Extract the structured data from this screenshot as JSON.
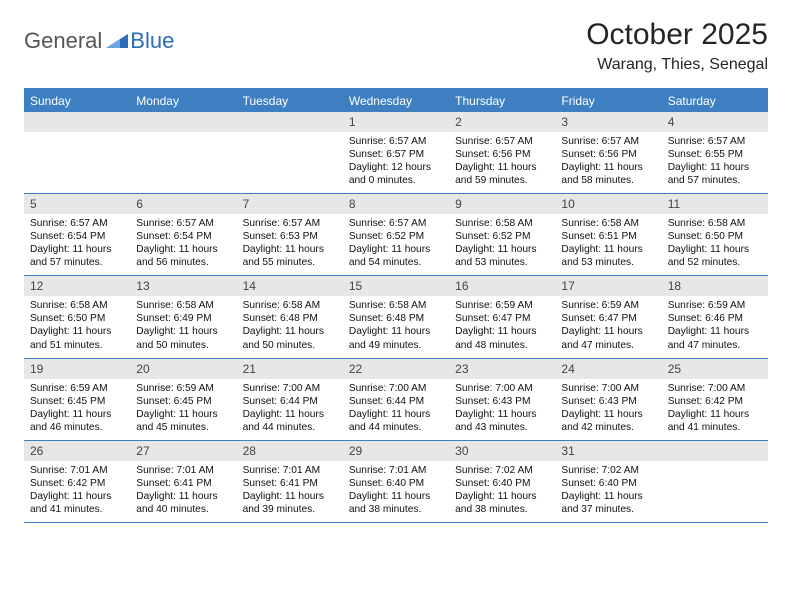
{
  "logo": {
    "general": "General",
    "blue": "Blue"
  },
  "month_title": "October 2025",
  "location": "Warang, Thies, Senegal",
  "day_headers": [
    "Sunday",
    "Monday",
    "Tuesday",
    "Wednesday",
    "Thursday",
    "Friday",
    "Saturday"
  ],
  "colors": {
    "brand_blue": "#3e7fc1",
    "daynum_bg": "#e7e7e7",
    "text": "#1a1a1a",
    "logo_gray": "#555555"
  },
  "weeks": [
    [
      {
        "n": "",
        "empty": true
      },
      {
        "n": "",
        "empty": true
      },
      {
        "n": "",
        "empty": true
      },
      {
        "n": "1",
        "sr": "6:57 AM",
        "ss": "6:57 PM",
        "dl": "12 hours and 0 minutes."
      },
      {
        "n": "2",
        "sr": "6:57 AM",
        "ss": "6:56 PM",
        "dl": "11 hours and 59 minutes."
      },
      {
        "n": "3",
        "sr": "6:57 AM",
        "ss": "6:56 PM",
        "dl": "11 hours and 58 minutes."
      },
      {
        "n": "4",
        "sr": "6:57 AM",
        "ss": "6:55 PM",
        "dl": "11 hours and 57 minutes."
      }
    ],
    [
      {
        "n": "5",
        "sr": "6:57 AM",
        "ss": "6:54 PM",
        "dl": "11 hours and 57 minutes."
      },
      {
        "n": "6",
        "sr": "6:57 AM",
        "ss": "6:54 PM",
        "dl": "11 hours and 56 minutes."
      },
      {
        "n": "7",
        "sr": "6:57 AM",
        "ss": "6:53 PM",
        "dl": "11 hours and 55 minutes."
      },
      {
        "n": "8",
        "sr": "6:57 AM",
        "ss": "6:52 PM",
        "dl": "11 hours and 54 minutes."
      },
      {
        "n": "9",
        "sr": "6:58 AM",
        "ss": "6:52 PM",
        "dl": "11 hours and 53 minutes."
      },
      {
        "n": "10",
        "sr": "6:58 AM",
        "ss": "6:51 PM",
        "dl": "11 hours and 53 minutes."
      },
      {
        "n": "11",
        "sr": "6:58 AM",
        "ss": "6:50 PM",
        "dl": "11 hours and 52 minutes."
      }
    ],
    [
      {
        "n": "12",
        "sr": "6:58 AM",
        "ss": "6:50 PM",
        "dl": "11 hours and 51 minutes."
      },
      {
        "n": "13",
        "sr": "6:58 AM",
        "ss": "6:49 PM",
        "dl": "11 hours and 50 minutes."
      },
      {
        "n": "14",
        "sr": "6:58 AM",
        "ss": "6:48 PM",
        "dl": "11 hours and 50 minutes."
      },
      {
        "n": "15",
        "sr": "6:58 AM",
        "ss": "6:48 PM",
        "dl": "11 hours and 49 minutes."
      },
      {
        "n": "16",
        "sr": "6:59 AM",
        "ss": "6:47 PM",
        "dl": "11 hours and 48 minutes."
      },
      {
        "n": "17",
        "sr": "6:59 AM",
        "ss": "6:47 PM",
        "dl": "11 hours and 47 minutes."
      },
      {
        "n": "18",
        "sr": "6:59 AM",
        "ss": "6:46 PM",
        "dl": "11 hours and 47 minutes."
      }
    ],
    [
      {
        "n": "19",
        "sr": "6:59 AM",
        "ss": "6:45 PM",
        "dl": "11 hours and 46 minutes."
      },
      {
        "n": "20",
        "sr": "6:59 AM",
        "ss": "6:45 PM",
        "dl": "11 hours and 45 minutes."
      },
      {
        "n": "21",
        "sr": "7:00 AM",
        "ss": "6:44 PM",
        "dl": "11 hours and 44 minutes."
      },
      {
        "n": "22",
        "sr": "7:00 AM",
        "ss": "6:44 PM",
        "dl": "11 hours and 44 minutes."
      },
      {
        "n": "23",
        "sr": "7:00 AM",
        "ss": "6:43 PM",
        "dl": "11 hours and 43 minutes."
      },
      {
        "n": "24",
        "sr": "7:00 AM",
        "ss": "6:43 PM",
        "dl": "11 hours and 42 minutes."
      },
      {
        "n": "25",
        "sr": "7:00 AM",
        "ss": "6:42 PM",
        "dl": "11 hours and 41 minutes."
      }
    ],
    [
      {
        "n": "26",
        "sr": "7:01 AM",
        "ss": "6:42 PM",
        "dl": "11 hours and 41 minutes."
      },
      {
        "n": "27",
        "sr": "7:01 AM",
        "ss": "6:41 PM",
        "dl": "11 hours and 40 minutes."
      },
      {
        "n": "28",
        "sr": "7:01 AM",
        "ss": "6:41 PM",
        "dl": "11 hours and 39 minutes."
      },
      {
        "n": "29",
        "sr": "7:01 AM",
        "ss": "6:40 PM",
        "dl": "11 hours and 38 minutes."
      },
      {
        "n": "30",
        "sr": "7:02 AM",
        "ss": "6:40 PM",
        "dl": "11 hours and 38 minutes."
      },
      {
        "n": "31",
        "sr": "7:02 AM",
        "ss": "6:40 PM",
        "dl": "11 hours and 37 minutes."
      },
      {
        "n": "",
        "empty": true
      }
    ]
  ],
  "labels": {
    "sunrise": "Sunrise: ",
    "sunset": "Sunset: ",
    "daylight": "Daylight: "
  }
}
